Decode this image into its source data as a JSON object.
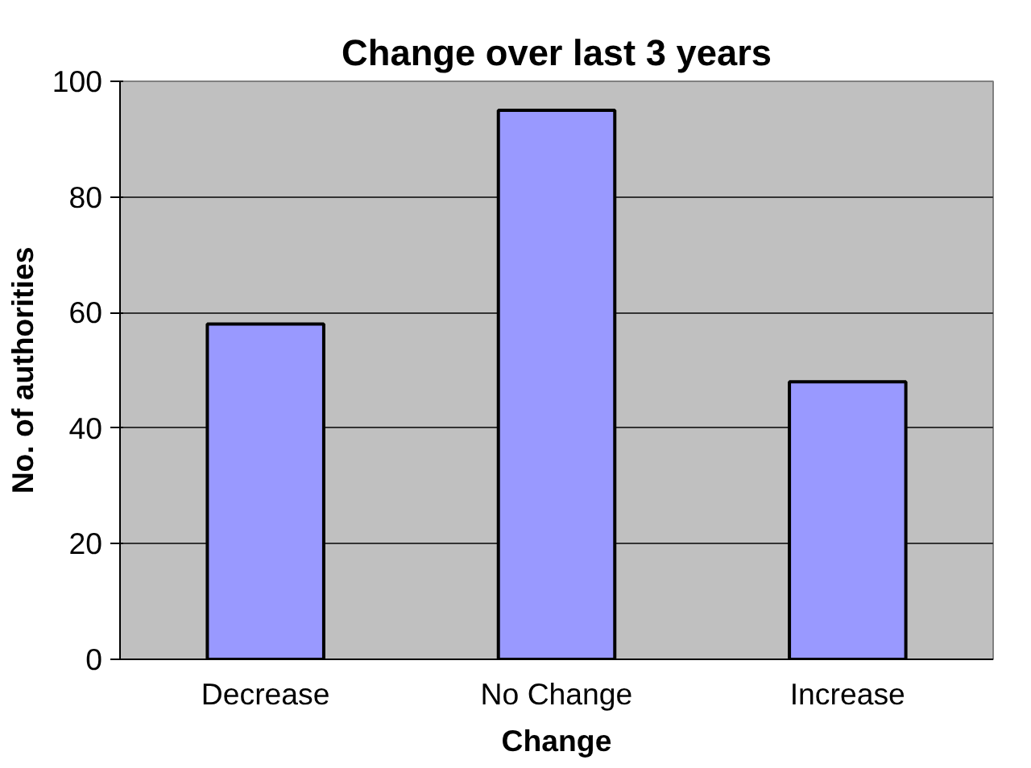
{
  "chart_data": {
    "type": "bar",
    "title": "Change over last 3 years",
    "xlabel": "Change",
    "ylabel": "No. of authorities",
    "categories": [
      "Decrease",
      "No Change",
      "Increase"
    ],
    "values": [
      58,
      95,
      48
    ],
    "color": "#9999ff",
    "ylim": [
      0,
      100
    ],
    "yticks": [
      0,
      20,
      40,
      60,
      80,
      100
    ],
    "grid": "y"
  }
}
